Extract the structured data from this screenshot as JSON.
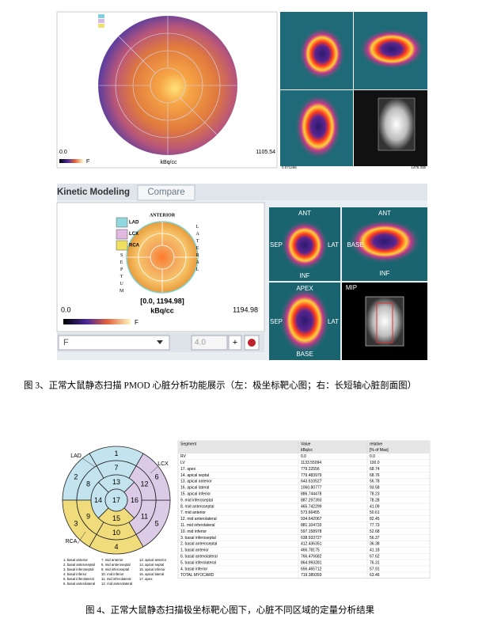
{
  "figure3_top": {
    "left_panel": {
      "scale_min": "0.0",
      "scale_max": "1105.54",
      "unit": "kBq/cc",
      "colorbar_label": "F"
    },
    "right_panel": {
      "scale_min": "0.071266",
      "scale_max": "1476.335"
    }
  },
  "figure3_bottom": {
    "tabs": [
      "Kinetic Modeling",
      "Compare"
    ],
    "polar": {
      "anterior": "ANTERIOR",
      "lateral": "LATERAL",
      "septum": "SEPTUM",
      "legend": [
        "LAD",
        "LCX",
        "RCA"
      ],
      "range": "[0.0, 1194.98]",
      "unit": "kBq/cc",
      "scale_min": "0.0",
      "scale_max": "1194.98",
      "colorbar_label": "F"
    },
    "controls": {
      "frame": "F",
      "value": "4.0"
    },
    "views": [
      {
        "labels": [
          "ANT",
          "SEP",
          "LAT",
          "INF"
        ]
      },
      {
        "labels": [
          "ANT",
          "BASE",
          "INF"
        ]
      },
      {
        "labels": [
          "APEX",
          "SEP",
          "LAT",
          "BASE"
        ]
      },
      {
        "labels": [
          "MIP"
        ]
      }
    ]
  },
  "caption1": "图 3、正常大鼠静态扫描 PMOD 心脏分析功能展示（左：极坐标靶心图；右：长短轴心脏剖面图）",
  "figure4": {
    "bullseye": {
      "segments": [
        1,
        2,
        3,
        4,
        5,
        6,
        7,
        8,
        9,
        10,
        11,
        12,
        13,
        14,
        15,
        16,
        17
      ],
      "territories": [
        "LAD",
        "LCX",
        "RCA"
      ],
      "territory_colors": {
        "LAD": "#c3e4ee",
        "LCX": "#dccbe6",
        "RCA": "#f1dc7c"
      },
      "legend": [
        "1. basal anterior",
        "2. basal anteroseptal",
        "3. basal inferoseptal",
        "4. basal inferior",
        "5. basal inferolateral",
        "6. basal anterolateral",
        "7. mid anterior",
        "8. mid anteroseptal",
        "9. mid inferoseptal",
        "10. mid inferior",
        "11. mid inferolateral",
        "12. mid anterolateral",
        "13. apical anterior",
        "14. apical septal",
        "15. apical inferior",
        "16. apical lateral",
        "17. apex"
      ]
    },
    "table": {
      "columns": [
        "Segment",
        "Value",
        "relative"
      ],
      "units": [
        "kBq/cc",
        "[% of Max]"
      ],
      "rows": [
        [
          "RV",
          "0.0",
          "0.0"
        ],
        [
          "LV",
          "1133.55094",
          "100.0"
        ],
        [
          "17. apex",
          "779.22556",
          "68.74"
        ],
        [
          "14. apical septal",
          "779.483979",
          "68.76"
        ],
        [
          "13. apical anterior",
          "643.610527",
          "56.78"
        ],
        [
          "16. apical lateral",
          "1060.80777",
          "93.58"
        ],
        [
          "15. apical inferior",
          "886.744478",
          "78.23"
        ],
        [
          "9. mid inferoseptal",
          "887.297393",
          "78.28"
        ],
        [
          "8. mid anteroseptal",
          "465.742299",
          "41.09"
        ],
        [
          "7. mid anterior",
          "573.66455",
          "50.61"
        ],
        [
          "12. mid anterolateral",
          "934.642067",
          "82.45"
        ],
        [
          "11. mid inferolateral",
          "881.104733",
          "77.73"
        ],
        [
          "10. mid inferior",
          "597.158978",
          "52.68"
        ],
        [
          "3. basal inferoseptal",
          "638.933727",
          "56.37"
        ],
        [
          "2. basal anteroseptal",
          "412.436351",
          "36.38"
        ],
        [
          "1. basal anterior",
          "466.78175",
          "41.18"
        ],
        [
          "6. basal anterolateral",
          "766.476682",
          "67.62"
        ],
        [
          "5. basal inferolateral",
          "864.993281",
          "76.31"
        ],
        [
          "4. basal inferior",
          "656.465712",
          "57.91"
        ],
        [
          "TOTAL MYOCARD",
          "719.389393",
          "63.46"
        ]
      ]
    }
  },
  "caption2": "图 4、正常大鼠静态扫描极坐标靶心图下，心脏不同区域的定量分析结果"
}
